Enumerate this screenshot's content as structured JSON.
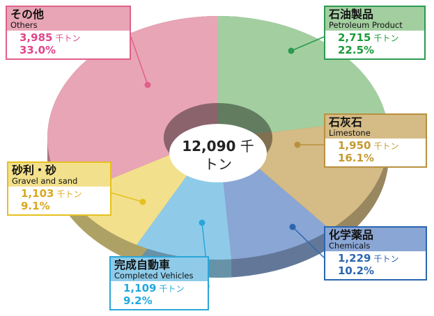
{
  "chart_data": {
    "type": "pie",
    "categories": [
      "石油製品",
      "石灰石",
      "化学薬品",
      "完成自動車",
      "砂利・砂",
      "その他"
    ],
    "categories_en": [
      "Petroleum Product",
      "Limestone",
      "Chemicals",
      "Completed Vehicles",
      "Gravel and sand",
      "Others"
    ],
    "values": [
      2715,
      1950,
      1229,
      1109,
      1103,
      3985
    ],
    "value_labels": [
      "2,715",
      "1,950",
      "1,229",
      "1,109",
      "1,103",
      "3,985"
    ],
    "percents": [
      22.5,
      16.1,
      10.2,
      9.2,
      9.1,
      33
    ],
    "percent_labels": [
      "22.5%",
      "16.1%",
      "10.2%",
      "9.2%",
      "9.1%",
      "33.0%"
    ],
    "unit": "千トン",
    "total": 12090,
    "total_label": "12,090",
    "colors": [
      "#a3cfa0",
      "#d5bb85",
      "#8aa6d5",
      "#8fcbe9",
      "#f2e08c",
      "#e8a5b5"
    ]
  }
}
